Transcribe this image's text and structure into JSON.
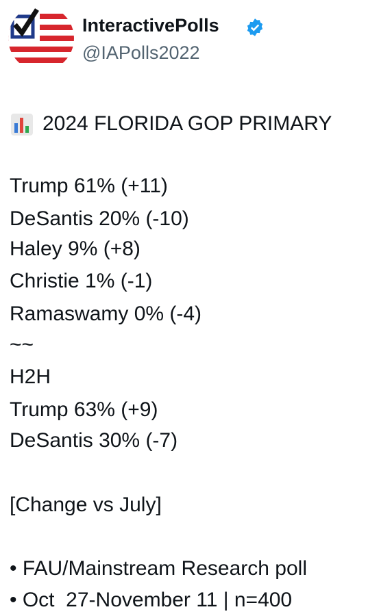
{
  "header": {
    "name": "InteractivePolls",
    "handle": "@IAPolls2022"
  },
  "post": {
    "title": "2024 FLORIDA GOP PRIMARY",
    "lines": [
      "Trump 61% (+11)",
      "DeSantis 20% (-10)",
      "Haley 9% (+8)",
      "Christie 1% (-1)",
      "Ramaswamy 0% (-4)",
      "~~",
      "H2H",
      "Trump 63% (+9)",
      "DeSantis 30% (-7)"
    ],
    "note": "[Change vs July]",
    "bullets": [
      "• FAU/Mainstream Research poll",
      "• Oct  27-November 11 | n=400"
    ]
  }
}
